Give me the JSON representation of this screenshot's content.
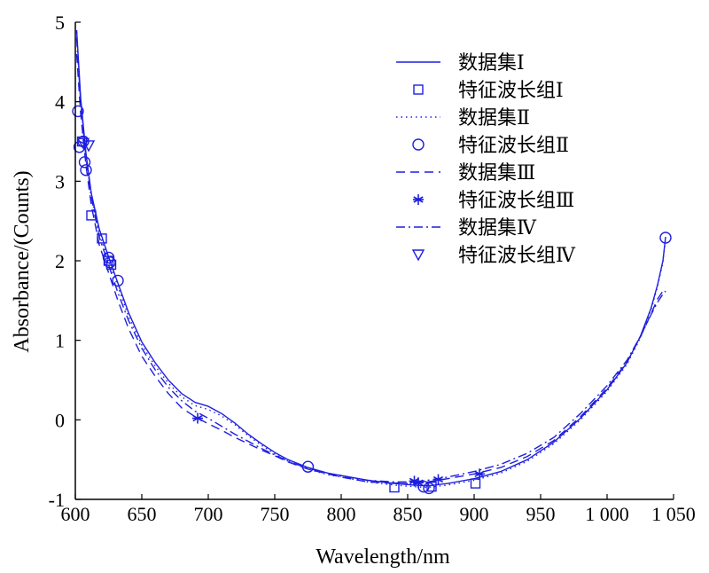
{
  "chart_data": {
    "type": "line",
    "title": "",
    "xlabel": "Wavelength/nm",
    "ylabel": "Absorbance/(Counts)",
    "xlim": [
      600,
      1050
    ],
    "ylim": [
      -1,
      5
    ],
    "xticks": [
      600,
      650,
      700,
      750,
      800,
      850,
      900,
      950,
      1000,
      1050
    ],
    "xtick_labels": [
      "600",
      "650",
      "700",
      "750",
      "800",
      "850",
      "900",
      "950",
      "1 000",
      "1 050"
    ],
    "yticks": [
      -1,
      0,
      1,
      2,
      3,
      4,
      5
    ],
    "ytick_labels": [
      "-1",
      "0",
      "1",
      "2",
      "3",
      "4",
      "5"
    ],
    "grid": false,
    "legend_position": "top-right",
    "line_color": "#1f1fe0",
    "series": [
      {
        "name": "数据集Ⅰ",
        "style": "solid",
        "x": [
          601,
          604,
          608,
          612,
          618,
          625,
          632,
          640,
          650,
          660,
          670,
          680,
          690,
          700,
          710,
          720,
          730,
          740,
          750,
          760,
          775,
          790,
          800,
          820,
          840,
          855,
          865,
          880,
          900,
          920,
          940,
          960,
          980,
          1000,
          1015,
          1025,
          1033,
          1038,
          1042,
          1044
        ],
        "y": [
          4.9,
          4.05,
          3.35,
          2.85,
          2.4,
          2.05,
          1.72,
          1.35,
          0.98,
          0.72,
          0.5,
          0.33,
          0.22,
          0.17,
          0.08,
          -0.04,
          -0.18,
          -0.3,
          -0.41,
          -0.5,
          -0.6,
          -0.67,
          -0.7,
          -0.76,
          -0.8,
          -0.82,
          -0.83,
          -0.8,
          -0.74,
          -0.65,
          -0.5,
          -0.28,
          0.02,
          0.38,
          0.72,
          1.05,
          1.4,
          1.7,
          2.0,
          2.3
        ]
      },
      {
        "name": "数据集Ⅱ",
        "style": "dotted",
        "x": [
          601,
          604,
          608,
          612,
          618,
          625,
          632,
          640,
          650,
          660,
          670,
          680,
          690,
          700,
          710,
          720,
          730,
          740,
          750,
          760,
          775,
          790,
          800,
          820,
          840,
          855,
          865,
          880,
          900,
          920,
          940,
          960,
          980,
          1000,
          1015,
          1025,
          1033,
          1038,
          1042,
          1044
        ],
        "y": [
          4.88,
          4.0,
          3.3,
          2.8,
          2.35,
          2.0,
          1.68,
          1.3,
          0.94,
          0.68,
          0.46,
          0.29,
          0.18,
          0.13,
          0.05,
          -0.06,
          -0.2,
          -0.32,
          -0.43,
          -0.52,
          -0.62,
          -0.69,
          -0.72,
          -0.78,
          -0.82,
          -0.84,
          -0.85,
          -0.82,
          -0.76,
          -0.67,
          -0.52,
          -0.3,
          0.0,
          0.36,
          0.7,
          1.03,
          1.38,
          1.68,
          1.98,
          2.28
        ]
      },
      {
        "name": "数据集Ⅲ",
        "style": "dashed",
        "x": [
          601,
          604,
          608,
          612,
          618,
          625,
          632,
          640,
          650,
          660,
          670,
          680,
          690,
          700,
          710,
          720,
          730,
          740,
          750,
          760,
          775,
          790,
          800,
          820,
          840,
          855,
          865,
          880,
          900,
          920,
          940,
          960,
          980,
          1000,
          1015,
          1025,
          1033,
          1038,
          1042,
          1044
        ],
        "y": [
          4.6,
          3.85,
          3.2,
          2.7,
          2.2,
          1.85,
          1.5,
          1.15,
          0.8,
          0.55,
          0.33,
          0.15,
          0.04,
          -0.05,
          -0.13,
          -0.22,
          -0.3,
          -0.38,
          -0.45,
          -0.53,
          -0.62,
          -0.68,
          -0.72,
          -0.78,
          -0.8,
          -0.8,
          -0.78,
          -0.74,
          -0.68,
          -0.6,
          -0.46,
          -0.26,
          0.04,
          0.4,
          0.73,
          1.04,
          1.33,
          1.52,
          1.62,
          1.66
        ]
      },
      {
        "name": "数据集Ⅳ",
        "style": "dashdot",
        "x": [
          601,
          604,
          608,
          612,
          618,
          625,
          632,
          640,
          650,
          660,
          670,
          680,
          690,
          700,
          710,
          720,
          730,
          740,
          750,
          760,
          775,
          790,
          800,
          820,
          840,
          855,
          865,
          880,
          900,
          920,
          940,
          960,
          980,
          1000,
          1015,
          1025,
          1033,
          1038,
          1042,
          1044
        ],
        "y": [
          4.8,
          4.0,
          3.3,
          2.8,
          2.3,
          1.95,
          1.6,
          1.25,
          0.9,
          0.63,
          0.41,
          0.24,
          0.11,
          0.02,
          -0.08,
          -0.18,
          -0.27,
          -0.36,
          -0.44,
          -0.52,
          -0.61,
          -0.67,
          -0.71,
          -0.76,
          -0.78,
          -0.78,
          -0.76,
          -0.72,
          -0.65,
          -0.56,
          -0.42,
          -0.22,
          0.08,
          0.43,
          0.75,
          1.05,
          1.32,
          1.48,
          1.58,
          1.62
        ]
      }
    ],
    "markers": [
      {
        "name": "特征波长组Ⅰ",
        "symbol": "square",
        "points": [
          [
            605,
            3.5
          ],
          [
            612,
            2.57
          ],
          [
            620,
            2.28
          ],
          [
            625,
            2.0
          ],
          [
            627,
            1.95
          ],
          [
            840,
            -0.85
          ],
          [
            868,
            -0.84
          ],
          [
            901,
            -0.8
          ]
        ]
      },
      {
        "name": "特征波长组Ⅱ",
        "symbol": "circle",
        "points": [
          [
            602,
            3.88
          ],
          [
            603,
            3.43
          ],
          [
            606,
            3.5
          ],
          [
            607,
            3.24
          ],
          [
            608,
            3.14
          ],
          [
            625,
            2.04
          ],
          [
            626,
            1.98
          ],
          [
            632,
            1.75
          ],
          [
            775,
            -0.59
          ],
          [
            862,
            -0.84
          ],
          [
            866,
            -0.86
          ],
          [
            1044,
            2.29
          ]
        ]
      },
      {
        "name": "特征波长组Ⅲ",
        "symbol": "asterisk",
        "points": [
          [
            692,
            0.02
          ],
          [
            855,
            -0.77
          ],
          [
            858,
            -0.79
          ],
          [
            873,
            -0.75
          ],
          [
            904,
            -0.68
          ]
        ]
      },
      {
        "name": "特征波长组Ⅳ",
        "symbol": "triangle-down",
        "points": [
          [
            606,
            3.48
          ],
          [
            610,
            3.45
          ]
        ]
      }
    ],
    "legend_order": [
      "数据集Ⅰ",
      "特征波长组Ⅰ",
      "数据集Ⅱ",
      "特征波长组Ⅱ",
      "数据集Ⅲ",
      "特征波长组Ⅲ",
      "数据集Ⅳ",
      "特征波长组Ⅳ"
    ]
  }
}
